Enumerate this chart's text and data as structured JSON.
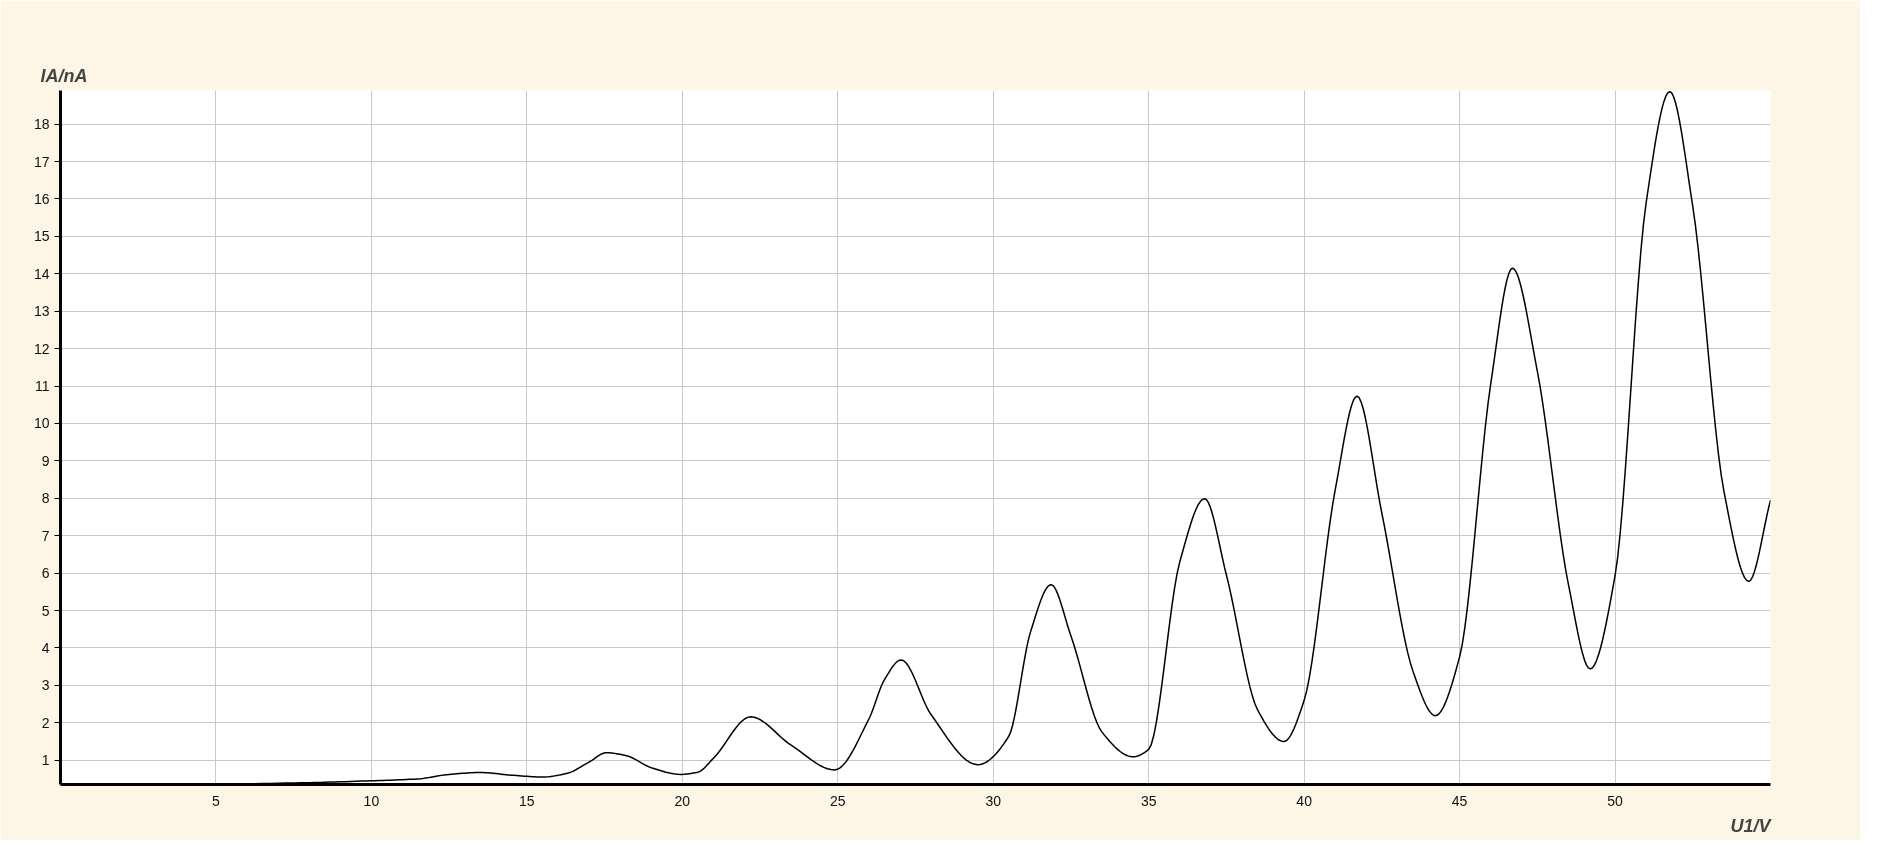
{
  "chart_data": {
    "type": "line",
    "xlabel": "U1/V",
    "ylabel": "IA/nA",
    "x": [
      3,
      5,
      8,
      10,
      11.5,
      12.5,
      13.5,
      14.5,
      15.5,
      16.3,
      17,
      17.56,
      18.2,
      19,
      19.95,
      20.5,
      21,
      22.2,
      23.5,
      24.9,
      26,
      26.5,
      27.04,
      28,
      29.5,
      30.5,
      31.2,
      31.86,
      32.5,
      33.5,
      34.5,
      35,
      36,
      36.8,
      37.5,
      38.5,
      39.35,
      40,
      41,
      41.7,
      42.5,
      43.5,
      44.22,
      45,
      46,
      46.7,
      47.5,
      48.5,
      49.2,
      50,
      51,
      51.76,
      52.5,
      53.5,
      54.3,
      55
    ],
    "series": [
      {
        "color": "#000000",
        "values": [
          0.35,
          0.36,
          0.4,
          0.45,
          0.5,
          0.62,
          0.67,
          0.6,
          0.55,
          0.65,
          0.95,
          1.2,
          1.12,
          0.8,
          0.62,
          0.68,
          1.05,
          2.16,
          1.4,
          0.74,
          2.1,
          3.15,
          3.68,
          2.22,
          0.88,
          1.64,
          4.43,
          5.69,
          4.32,
          1.75,
          1.09,
          1.29,
          6.3,
          7.99,
          5.95,
          2.35,
          1.5,
          2.6,
          8.23,
          10.73,
          7.6,
          3.38,
          2.19,
          3.76,
          11.05,
          14.15,
          11.4,
          5.7,
          3.44,
          5.93,
          15.9,
          18.87,
          15.8,
          8.2,
          5.78,
          7.95
        ]
      }
    ],
    "xlim": [
      0,
      55
    ],
    "ylim": [
      0.35,
      18.9
    ],
    "xticks": [
      5,
      10,
      15,
      20,
      25,
      30,
      35,
      40,
      45,
      50
    ],
    "yticks": [
      1,
      2,
      3,
      4,
      5,
      6,
      7,
      8,
      9,
      10,
      11,
      12,
      13,
      14,
      15,
      16,
      17,
      18
    ],
    "grid": true,
    "marker": "none",
    "line_style": "solid"
  }
}
